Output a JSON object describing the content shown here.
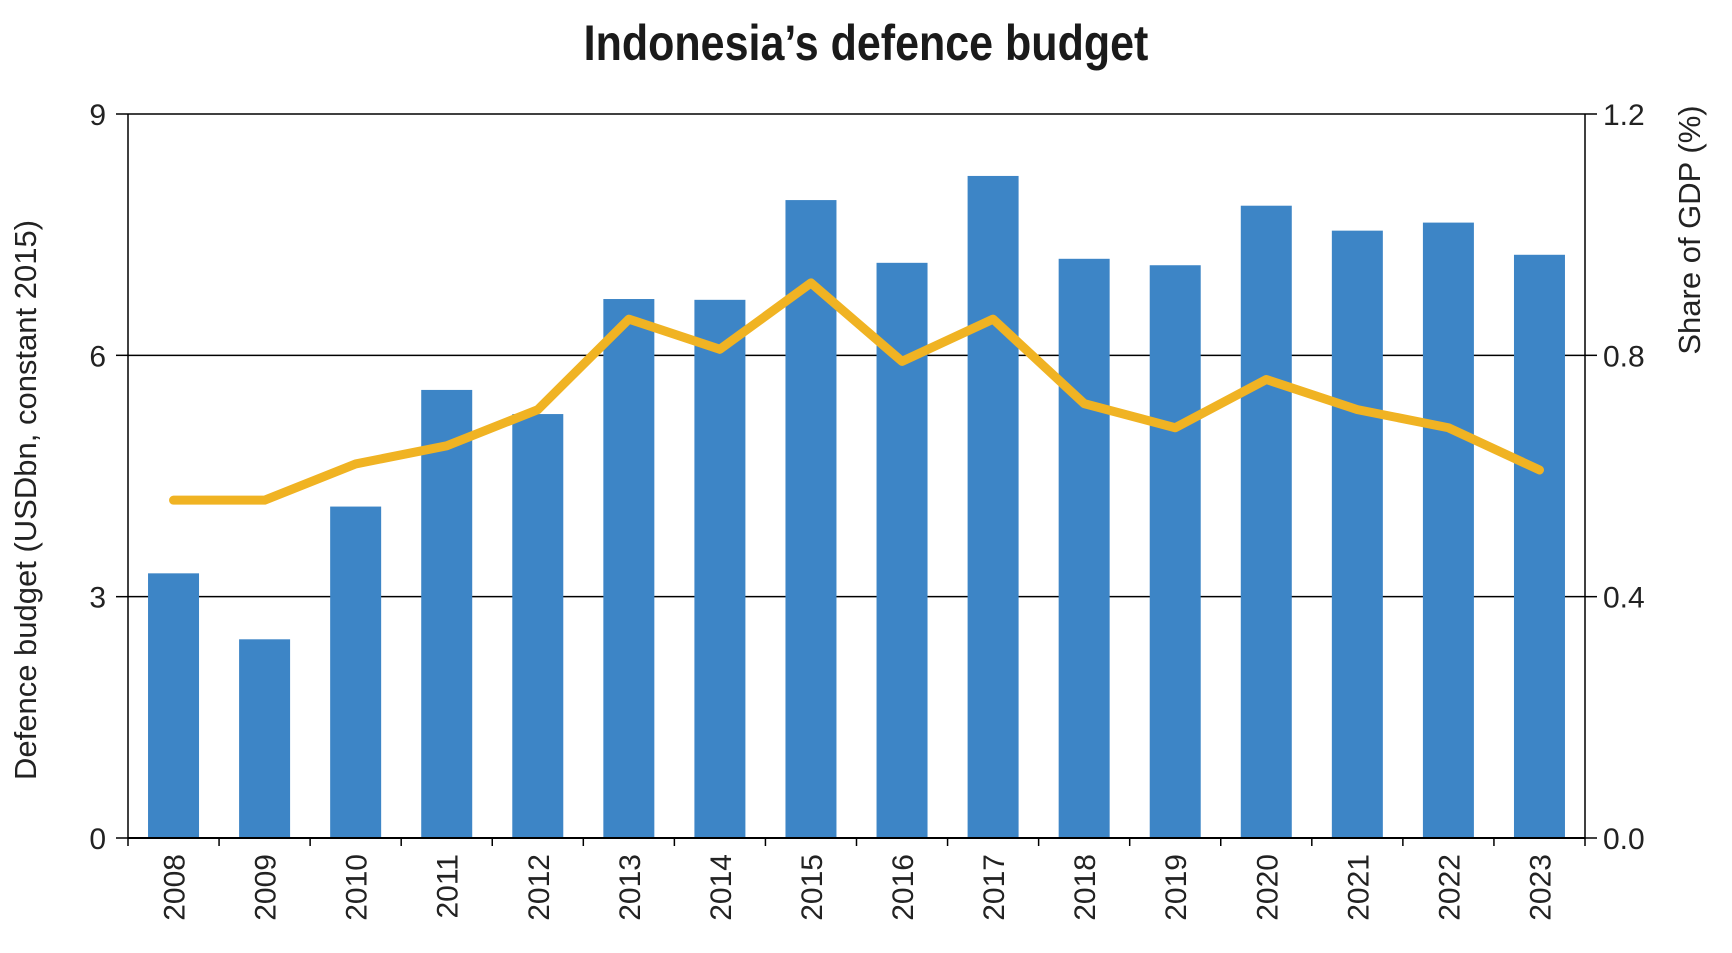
{
  "chart_data": {
    "type": "bar",
    "title": "Indonesia’s defence budget",
    "categories": [
      "2008",
      "2009",
      "2010",
      "2011",
      "2012",
      "2013",
      "2014",
      "2015",
      "2016",
      "2017",
      "2018",
      "2019",
      "2020",
      "2021",
      "2022",
      "2023"
    ],
    "series": [
      {
        "type": "bar",
        "axis": "left",
        "values": [
          3.29,
          2.47,
          4.12,
          5.57,
          5.27,
          6.7,
          6.69,
          7.93,
          7.15,
          8.23,
          7.2,
          7.12,
          7.86,
          7.55,
          7.65,
          7.25
        ]
      },
      {
        "type": "line",
        "axis": "right",
        "values": [
          0.56,
          0.56,
          0.62,
          0.65,
          0.71,
          0.86,
          0.81,
          0.92,
          0.79,
          0.86,
          0.72,
          0.68,
          0.76,
          0.71,
          0.68,
          0.61
        ]
      }
    ],
    "ylabel": "Defence budget (USDbn, constant 2015)",
    "ylim": [
      0,
      9
    ],
    "yticks": [
      "0",
      "3",
      "6",
      "9"
    ],
    "y2label": "Share of GDP (%)",
    "y2lim": [
      0,
      1.2
    ],
    "y2ticks": [
      "0.0",
      "0.4",
      "0.8",
      "1.2"
    ],
    "grid": true,
    "colors": {
      "bar": "#3d85c6",
      "line": "#f0b323",
      "grid": "#000000"
    }
  }
}
